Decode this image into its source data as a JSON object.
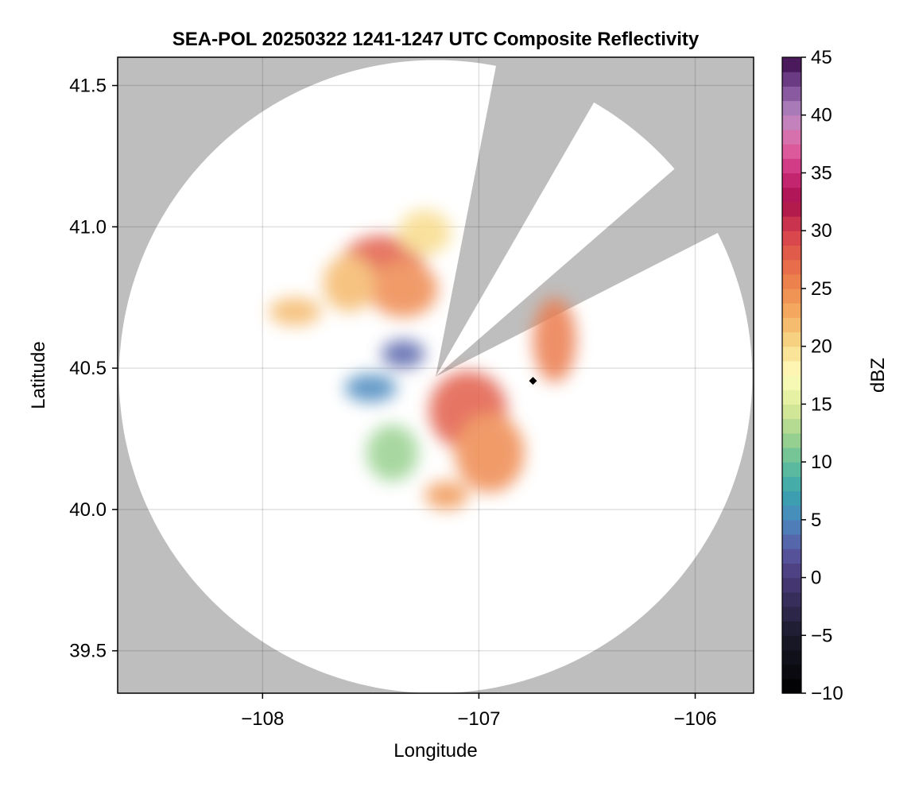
{
  "chart_data": {
    "type": "heatmap",
    "title": "SEA-POL 20250322 1241-1247 UTC Composite Reflectivity",
    "xlabel": "Longitude",
    "ylabel": "Latitude",
    "xlim": [
      -108.67,
      -105.73
    ],
    "ylim": [
      39.35,
      41.6
    ],
    "xticks": [
      -108,
      -107,
      -106
    ],
    "xtick_labels": [
      "−108",
      "−107",
      "−106"
    ],
    "yticks": [
      39.5,
      40.0,
      40.5,
      41.0,
      41.5
    ],
    "ytick_labels": [
      "39.5",
      "40.0",
      "40.5",
      "41.0",
      "41.5"
    ],
    "grid": true,
    "background_color": "#bebebe",
    "coverage_color": "#ffffff",
    "radar": {
      "lon": -107.2,
      "lat": 40.47,
      "range_deg_lat": 1.12
    },
    "blocked_sectors": [
      {
        "az_start": 12,
        "az_end": 29
      },
      {
        "az_start": 50,
        "az_end": 62
      }
    ],
    "marker": {
      "lon": -106.75,
      "lat": 40.455,
      "color": "#000000"
    },
    "colorbar": {
      "label": "dBZ",
      "min": -10,
      "max": 45,
      "step": 1.25,
      "ticks": [
        -10,
        -5,
        0,
        5,
        10,
        15,
        20,
        25,
        30,
        35,
        40,
        45
      ],
      "tick_labels": [
        "−10",
        "−5",
        "0",
        "5",
        "10",
        "15",
        "20",
        "25",
        "30",
        "35",
        "40",
        "45"
      ],
      "colormap": [
        [
          -10,
          "#000000"
        ],
        [
          -5,
          "#1a1a2a"
        ],
        [
          0,
          "#4a3a7a"
        ],
        [
          2.5,
          "#5a5aa5"
        ],
        [
          5,
          "#4a88be"
        ],
        [
          7.5,
          "#3aa5ad"
        ],
        [
          10,
          "#66c09a"
        ],
        [
          12.5,
          "#a6d58e"
        ],
        [
          15,
          "#dfed9a"
        ],
        [
          17.5,
          "#fefdbd"
        ],
        [
          20,
          "#f8dc8c"
        ],
        [
          22.5,
          "#f4b064"
        ],
        [
          25,
          "#ef8a50"
        ],
        [
          27.5,
          "#e56449"
        ],
        [
          30,
          "#d43f4e"
        ],
        [
          32.5,
          "#a80f4d"
        ],
        [
          35,
          "#cd2c7a"
        ],
        [
          37.5,
          "#e168a6"
        ],
        [
          40,
          "#b98ac3"
        ],
        [
          42.5,
          "#7a4a95"
        ],
        [
          45,
          "#3a0a4a"
        ]
      ]
    },
    "reflectivity_cells": [
      {
        "lon": -107.45,
        "lat": 40.85,
        "rx": 0.2,
        "ry": 0.12,
        "dbz": 28
      },
      {
        "lon": -107.35,
        "lat": 40.78,
        "rx": 0.16,
        "ry": 0.1,
        "dbz": 25
      },
      {
        "lon": -107.6,
        "lat": 40.8,
        "rx": 0.12,
        "ry": 0.1,
        "dbz": 22
      },
      {
        "lon": -107.25,
        "lat": 40.98,
        "rx": 0.12,
        "ry": 0.08,
        "dbz": 20
      },
      {
        "lon": -107.05,
        "lat": 40.35,
        "rx": 0.18,
        "ry": 0.14,
        "dbz": 28
      },
      {
        "lon": -106.95,
        "lat": 40.2,
        "rx": 0.16,
        "ry": 0.14,
        "dbz": 25
      },
      {
        "lon": -106.65,
        "lat": 40.6,
        "rx": 0.1,
        "ry": 0.15,
        "dbz": 26
      },
      {
        "lon": -107.85,
        "lat": 40.7,
        "rx": 0.12,
        "ry": 0.05,
        "dbz": 22
      },
      {
        "lon": -107.15,
        "lat": 40.05,
        "rx": 0.1,
        "ry": 0.05,
        "dbz": 24
      },
      {
        "lon": -107.35,
        "lat": 40.55,
        "rx": 0.1,
        "ry": 0.05,
        "dbz": 3
      },
      {
        "lon": -107.5,
        "lat": 40.43,
        "rx": 0.12,
        "ry": 0.05,
        "dbz": 5
      },
      {
        "lon": -107.4,
        "lat": 40.2,
        "rx": 0.12,
        "ry": 0.1,
        "dbz": 12
      }
    ]
  }
}
